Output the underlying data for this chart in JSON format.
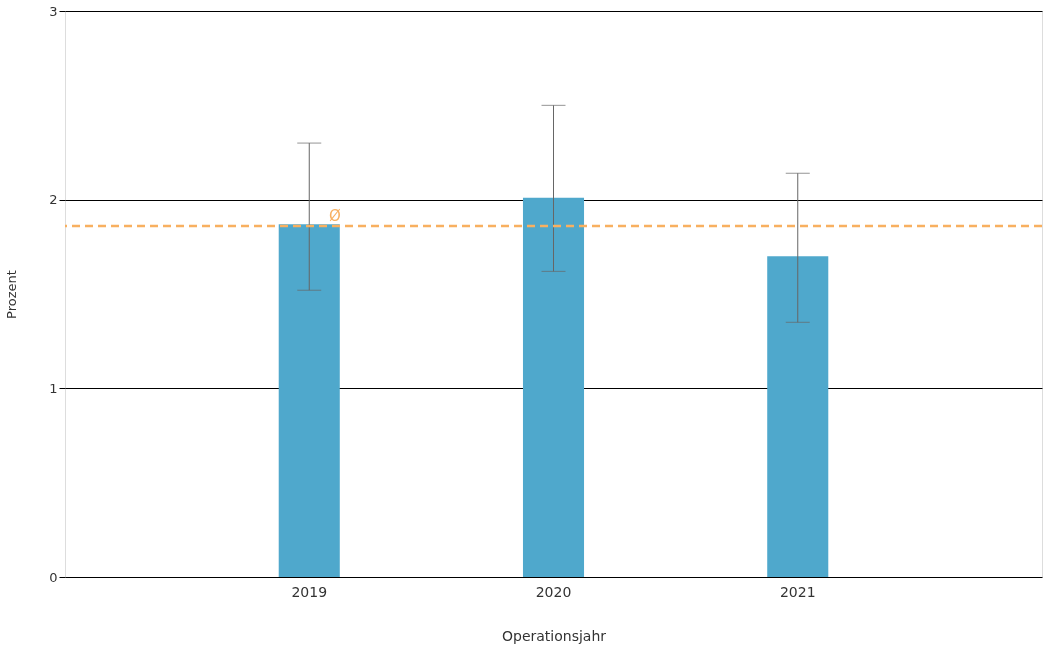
{
  "chart_data": {
    "type": "bar",
    "xlabel": "Operationsjahr",
    "ylabel": "Prozent",
    "categories": [
      "2019",
      "2020",
      "2021"
    ],
    "values": [
      1.87,
      2.01,
      1.7
    ],
    "errors": [
      [
        1.52,
        2.3
      ],
      [
        1.62,
        2.5
      ],
      [
        1.35,
        2.14
      ]
    ],
    "color": "#4fa8cc",
    "ylim": [
      0,
      3
    ],
    "yticks": [
      0,
      1,
      2,
      3
    ],
    "grid": "y",
    "ref_lines": [
      {
        "axis": "y",
        "value": 1.86,
        "label": "Ø",
        "color": "#f8b060",
        "line_style": "dashed"
      }
    ]
  }
}
